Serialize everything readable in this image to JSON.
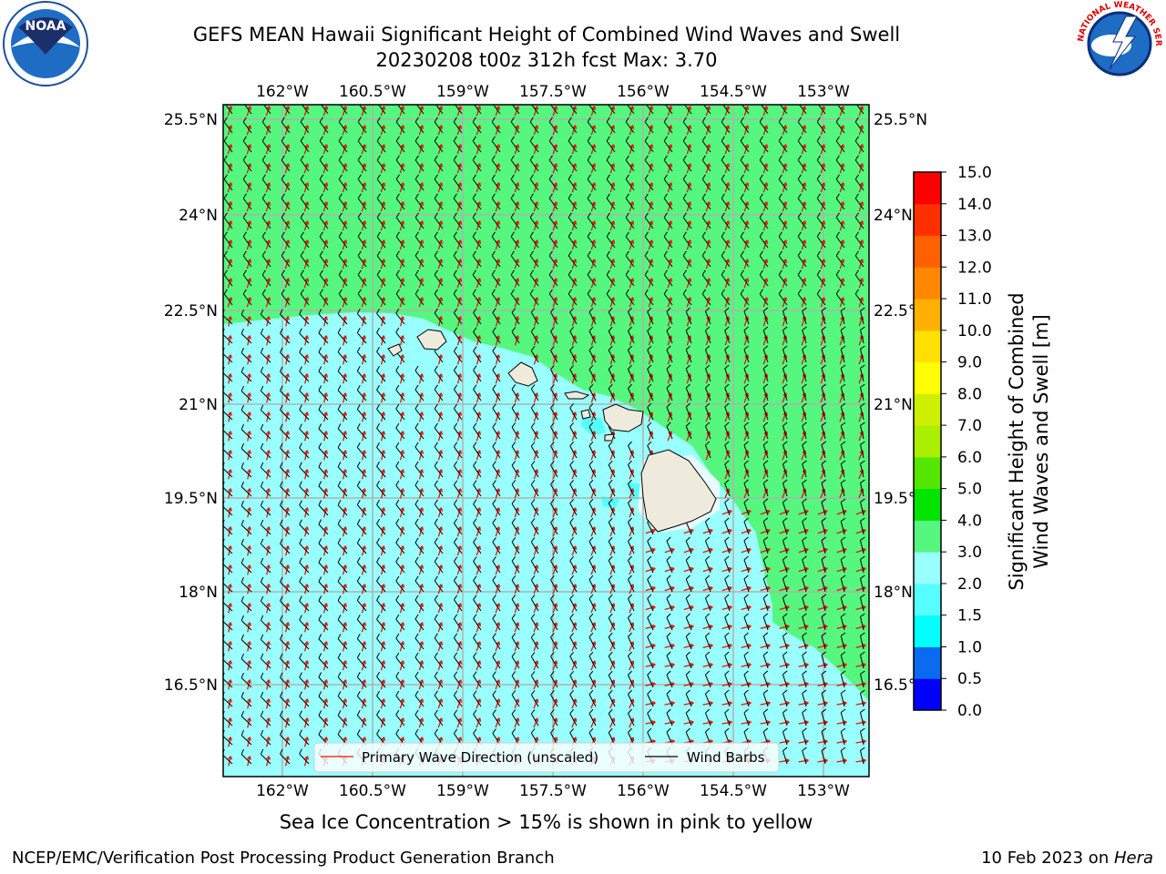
{
  "title_line1": "GEFS MEAN Hawaii Significant Height of Combined Wind Waves and Swell",
  "title_line2": "20230208 t00z 312h fcst   Max: 3.70",
  "subtitle_note": "Sea Ice Concentration > 15% is shown in pink to yellow",
  "footer_left": "NCEP/EMC/Verification Post Processing Product Generation Branch",
  "footer_right_prefix": "10 Feb 2023 on ",
  "footer_right_host": "Hera",
  "logos": {
    "left": "noaa-logo",
    "right": "nws-logo"
  },
  "map": {
    "lon_ticks": [
      "162°W",
      "160.5°W",
      "159°W",
      "157.5°W",
      "156°W",
      "154.5°W",
      "153°W"
    ],
    "lat_ticks": [
      "25.5°N",
      "24°N",
      "22.5°N",
      "21°N",
      "19.5°N",
      "18°N",
      "16.5°N"
    ],
    "colors": {
      "land": "#efebdc",
      "wave_2_3": "#99ffff",
      "wave_3_4": "#55f77f",
      "wave_1_5_2": "#55ffff",
      "wave_dir": "#ee1100",
      "barb": "#000000"
    }
  },
  "legend": {
    "wave_dir": "Primary Wave Direction (unscaled)",
    "barbs": "Wind Barbs"
  },
  "colorbar": {
    "title_line1": "Significant Height of Combined",
    "title_line2": "Wind Waves and Swell [m]",
    "levels": [
      "0.0",
      "0.5",
      "1.0",
      "1.5",
      "2.0",
      "3.0",
      "4.0",
      "5.0",
      "6.0",
      "7.0",
      "8.0",
      "9.0",
      "10.0",
      "11.0",
      "12.0",
      "13.0",
      "14.0",
      "15.0"
    ],
    "colors": [
      "#0000ff",
      "#0a6af0",
      "#00ffff",
      "#55ffff",
      "#99ffff",
      "#55f77f",
      "#00e400",
      "#55e600",
      "#aaee00",
      "#ccf000",
      "#ffff00",
      "#ffe000",
      "#ffb000",
      "#ff8800",
      "#ff6000",
      "#ff3000",
      "#ff0000"
    ]
  }
}
